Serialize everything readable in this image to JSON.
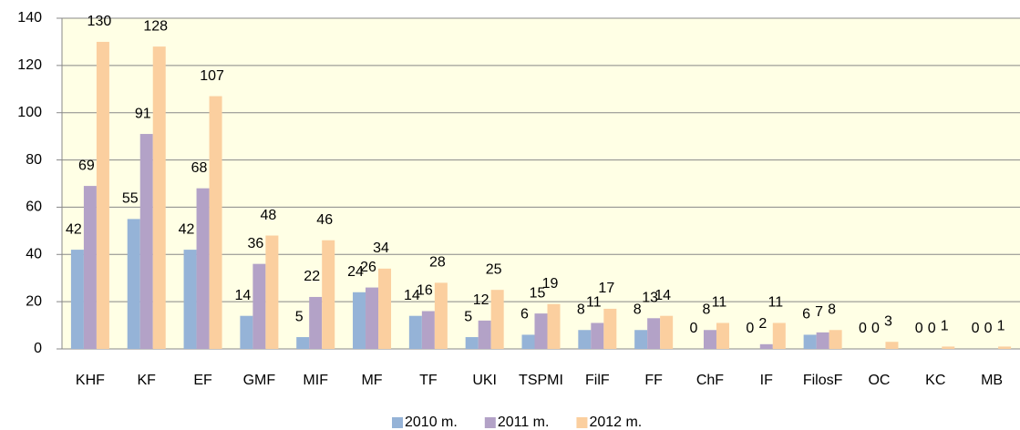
{
  "chart_data": {
    "type": "bar",
    "categories": [
      "KHF",
      "KF",
      "EF",
      "GMF",
      "MIF",
      "MF",
      "TF",
      "UKI",
      "TSPMI",
      "FilF",
      "FF",
      "ChF",
      "IF",
      "FilosF",
      "OC",
      "KC",
      "MB"
    ],
    "series": [
      {
        "name": "2010 m.",
        "color": "#95b3d7",
        "values": [
          42,
          55,
          42,
          14,
          5,
          24,
          14,
          5,
          6,
          8,
          8,
          0,
          0,
          6,
          0,
          0,
          0
        ]
      },
      {
        "name": "2011 m.",
        "color": "#b3a2c7",
        "values": [
          69,
          91,
          68,
          36,
          22,
          26,
          16,
          12,
          15,
          11,
          13,
          8,
          2,
          7,
          0,
          0,
          0
        ]
      },
      {
        "name": "2012 m.",
        "color": "#fbcf9f",
        "values": [
          130,
          128,
          107,
          48,
          46,
          34,
          28,
          25,
          19,
          17,
          14,
          11,
          11,
          8,
          3,
          1,
          1
        ]
      }
    ],
    "ylim": [
      0,
      140
    ],
    "yticks": [
      0,
      20,
      40,
      60,
      80,
      100,
      120,
      140
    ],
    "grid": true,
    "legend": "bottom"
  }
}
